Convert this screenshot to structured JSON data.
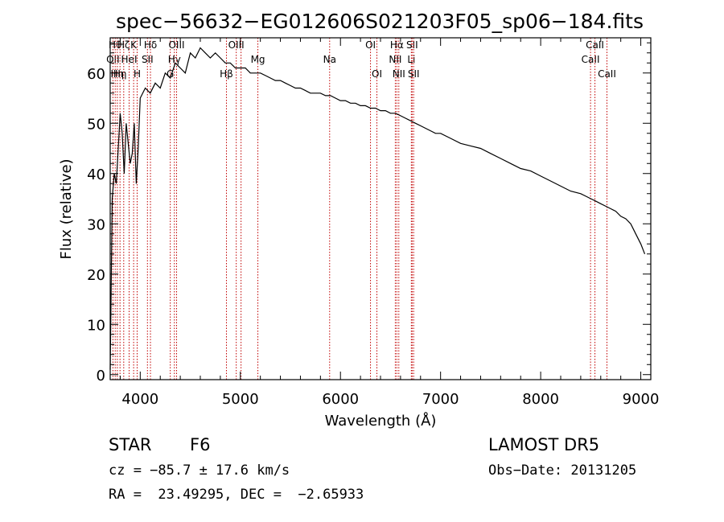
{
  "chart_data": {
    "type": "line",
    "title": "spec−56632−EG012606S021203F05_sp06−184.fits",
    "xlabel": "Wavelength (Å)",
    "ylabel": "Flux (relative)",
    "xlim": [
      3700,
      9100
    ],
    "ylim": [
      -1,
      67
    ],
    "xticks": [
      4000,
      5000,
      6000,
      7000,
      8000,
      9000
    ],
    "yticks": [
      0,
      10,
      20,
      30,
      40,
      50,
      60
    ],
    "grid": false,
    "series": [
      {
        "x": [
          3700,
          3720,
          3740,
          3760,
          3780,
          3800,
          3820,
          3840,
          3860,
          3880,
          3900,
          3920,
          3940,
          3960,
          3980,
          4000,
          4050,
          4100,
          4150,
          4200,
          4250,
          4300,
          4350,
          4400,
          4450,
          4500,
          4550,
          4600,
          4650,
          4700,
          4750,
          4800,
          4850,
          4900,
          4950,
          5000,
          5050,
          5100,
          5150,
          5200,
          5250,
          5300,
          5350,
          5400,
          5450,
          5500,
          5550,
          5600,
          5650,
          5700,
          5750,
          5800,
          5850,
          5900,
          5950,
          6000,
          6050,
          6100,
          6150,
          6200,
          6250,
          6300,
          6350,
          6400,
          6450,
          6500,
          6550,
          6600,
          6650,
          6700,
          6750,
          6800,
          6850,
          6900,
          6950,
          7000,
          7100,
          7200,
          7300,
          7400,
          7500,
          7600,
          7700,
          7800,
          7900,
          8000,
          8100,
          8200,
          8300,
          8400,
          8450,
          8500,
          8550,
          8600,
          8650,
          8700,
          8750,
          8800,
          8850,
          8900,
          8950,
          9000,
          9040
        ],
        "y": [
          1,
          35,
          40,
          38,
          45,
          52,
          48,
          40,
          50,
          46,
          42,
          44,
          50,
          38,
          45,
          55,
          57,
          56,
          58,
          57,
          60,
          59,
          62,
          61,
          60,
          64,
          63,
          65,
          64,
          63,
          64,
          63,
          62,
          62,
          61,
          61,
          61,
          60,
          60,
          60,
          59.5,
          59,
          58.5,
          58.5,
          58,
          57.5,
          57,
          57,
          56.5,
          56,
          56,
          56,
          55.5,
          55.5,
          55,
          54.5,
          54.5,
          54,
          54,
          53.5,
          53.5,
          53,
          53,
          52.5,
          52.5,
          52,
          52,
          51.5,
          51,
          50.5,
          50,
          49.5,
          49,
          48.5,
          48,
          48,
          47,
          46,
          45.5,
          45,
          44,
          43,
          42,
          41,
          40.5,
          39.5,
          38.5,
          37.5,
          36.5,
          36,
          35.5,
          35,
          34.5,
          34,
          33.5,
          33,
          32.5,
          31.5,
          31,
          30,
          28,
          26,
          24
        ]
      }
    ],
    "spectral_lines": [
      {
        "wave": 3727,
        "label": "OII",
        "row": 1
      },
      {
        "wave": 3750,
        "label": "Hθ",
        "row": 0
      },
      {
        "wave": 3771,
        "label": "Hη",
        "row": 2
      },
      {
        "wave": 3798,
        "label": "Hη",
        "row": 2
      },
      {
        "wave": 3835,
        "label": "Hζ",
        "row": 0
      },
      {
        "wave": 3889,
        "label": "HeI",
        "row": 1
      },
      {
        "wave": 3934,
        "label": "K",
        "row": 0
      },
      {
        "wave": 3969,
        "label": "H",
        "row": 2
      },
      {
        "wave": 4072,
        "label": "SII",
        "row": 1
      },
      {
        "wave": 4102,
        "label": "Hδ",
        "row": 0
      },
      {
        "wave": 4300,
        "label": "G",
        "row": 2
      },
      {
        "wave": 4341,
        "label": "Hγ",
        "row": 1
      },
      {
        "wave": 4363,
        "label": "OIII",
        "row": 0
      },
      {
        "wave": 4861,
        "label": "Hβ",
        "row": 2
      },
      {
        "wave": 4959,
        "label": "OIII",
        "row": 0
      },
      {
        "wave": 5007,
        "label": "",
        "row": 0
      },
      {
        "wave": 5175,
        "label": "Mg",
        "row": 1
      },
      {
        "wave": 5892,
        "label": "Na",
        "row": 1
      },
      {
        "wave": 6300,
        "label": "OI",
        "row": 0
      },
      {
        "wave": 6364,
        "label": "OI",
        "row": 2
      },
      {
        "wave": 6548,
        "label": "NII",
        "row": 1
      },
      {
        "wave": 6563,
        "label": "Hα",
        "row": 0
      },
      {
        "wave": 6583,
        "label": "NII",
        "row": 2
      },
      {
        "wave": 6708,
        "label": "Li",
        "row": 1
      },
      {
        "wave": 6716,
        "label": "SII",
        "row": 0
      },
      {
        "wave": 6731,
        "label": "SII",
        "row": 2
      },
      {
        "wave": 8498,
        "label": "CaII",
        "row": 1
      },
      {
        "wave": 8542,
        "label": "CaII",
        "row": 0
      },
      {
        "wave": 8662,
        "label": "CaII",
        "row": 2
      }
    ]
  },
  "info": {
    "class": "STAR",
    "subclass": "F6",
    "survey": "LAMOST DR5",
    "cz": "cz = −85.7 ± 17.6 km/s",
    "obsdate": "Obs−Date: 20131205",
    "radec": "RA =  23.49295, DEC =  −2.65933"
  },
  "colors": {
    "spectrum": "#000000",
    "line_markers": "#c00000",
    "axes": "#000000",
    "background": "#ffffff"
  }
}
